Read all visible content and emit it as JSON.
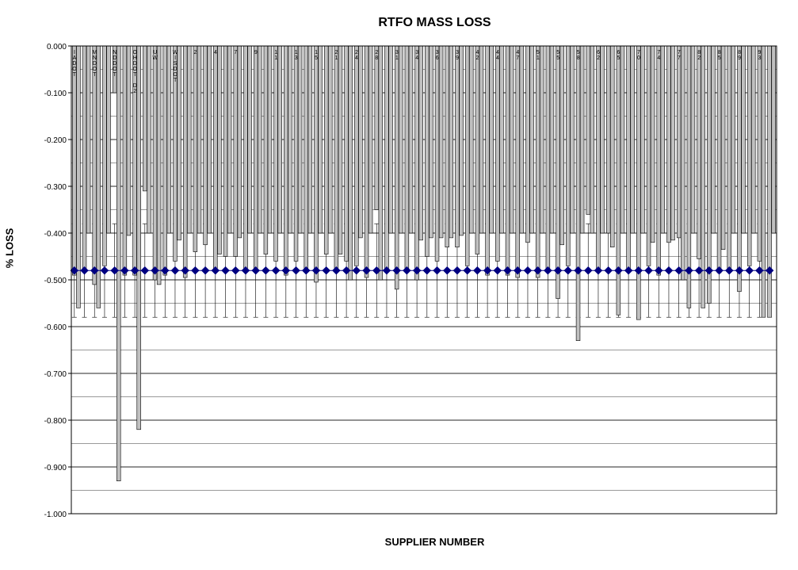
{
  "chart": {
    "type": "bar-with-line",
    "title": "RTFO MASS LOSS",
    "xlabel": "SUPPLIER NUMBER",
    "ylabel": "% LOSS",
    "background_color": "#ffffff",
    "grid_color": "#000000",
    "plot_border_color": "#000000",
    "ylim": [
      -1.0,
      0.0
    ],
    "yticks": [
      "0.000",
      "-0.100",
      "-0.200",
      "-0.300",
      "-0.400",
      "-0.500",
      "-0.600",
      "-0.700",
      "-0.800",
      "-0.900",
      "-1.000"
    ],
    "ytick_step": 0.1,
    "yminor_step": 0.05,
    "title_fontsize": 16,
    "label_fontsize": 13,
    "tick_fontsize": 10,
    "bar_colors": {
      "fill": "#c0c0c0",
      "stroke": "#000000"
    },
    "line": {
      "value": -0.48,
      "color": "#000080",
      "marker": "diamond",
      "marker_fill": "#000080",
      "marker_size": 5,
      "stroke_width": 1
    },
    "categories": [
      "IADOT",
      "",
      "MNDOT",
      "",
      "NDDOT",
      "",
      "OHDOT D2",
      "",
      "UW",
      "",
      "WISDOT",
      "",
      "2",
      "",
      "4",
      "",
      "7",
      "",
      "9",
      "",
      "11",
      "",
      "13",
      "",
      "15",
      "",
      "21",
      "",
      "24",
      "",
      "28",
      "",
      "31",
      "",
      "34",
      "",
      "36",
      "",
      "39",
      "",
      "42",
      "",
      "44",
      "",
      "47",
      "",
      "51",
      "",
      "55",
      "",
      "58",
      "",
      "62",
      "",
      "65",
      "",
      "70",
      "",
      "74",
      "",
      "77",
      "",
      "82",
      "",
      "85",
      "",
      "89",
      "",
      "93",
      ""
    ],
    "bars_a": [
      -0.49,
      -0.48,
      -0.51,
      -0.47,
      -0.1,
      -0.49,
      -0.49,
      -0.31,
      -0.5,
      -0.49,
      -0.46,
      -0.495,
      -0.44,
      -0.425,
      -0.48,
      -0.45,
      -0.45,
      -0.48,
      -0.48,
      -0.445,
      -0.46,
      -0.49,
      -0.46,
      -0.48,
      -0.505,
      -0.445,
      -0.475,
      -0.46,
      -0.47,
      -0.495,
      -0.35,
      -0.48,
      -0.52,
      -0.475,
      -0.5,
      -0.45,
      -0.46,
      -0.43,
      -0.43,
      -0.47,
      -0.445,
      -0.49,
      -0.46,
      -0.49,
      -0.495,
      -0.42,
      -0.495,
      -0.475,
      -0.54,
      -0.47,
      -0.63,
      -0.36,
      -0.48,
      -0.4,
      -0.575,
      -0.48,
      -0.585,
      -0.47,
      -0.49,
      -0.42,
      -0.41,
      -0.56,
      -0.455,
      -0.55,
      -0.485,
      -0.475,
      -0.525,
      -0.47,
      -0.46,
      -0.58
    ],
    "bars_b": [
      -0.56,
      -0.4,
      -0.56,
      -0.4,
      -0.93,
      -0.405,
      -0.82,
      -0.4,
      -0.51,
      -0.4,
      -0.415,
      -0.4,
      -0.4,
      -0.4,
      -0.445,
      -0.4,
      -0.41,
      -0.4,
      -0.4,
      -0.4,
      -0.4,
      -0.4,
      -0.4,
      -0.4,
      -0.4,
      -0.4,
      -0.445,
      -0.5,
      -0.41,
      -0.4,
      -0.5,
      -0.4,
      -0.4,
      -0.4,
      -0.415,
      -0.41,
      -0.41,
      -0.41,
      -0.405,
      -0.4,
      -0.4,
      -0.4,
      -0.4,
      -0.4,
      -0.4,
      -0.4,
      -0.4,
      -0.4,
      -0.425,
      -0.4,
      -0.4,
      -0.4,
      -0.4,
      -0.43,
      -0.4,
      -0.4,
      -0.4,
      -0.42,
      -0.4,
      -0.415,
      -0.5,
      -0.4,
      -0.56,
      -0.4,
      -0.435,
      -0.4,
      -0.4,
      -0.4,
      -0.58,
      -0.4
    ],
    "errorbar_delta": 0.1
  }
}
